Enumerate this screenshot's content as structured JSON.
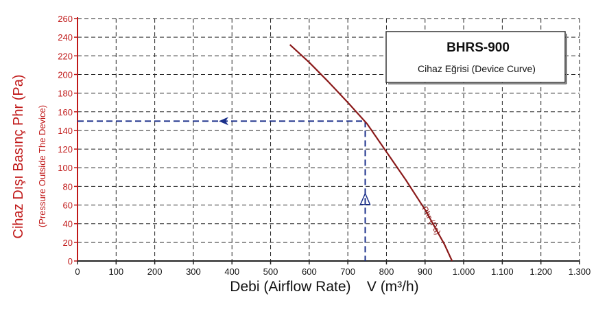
{
  "chart_data": {
    "type": "line",
    "title": "BHRS-900",
    "subtitle": "Cihaz Eğrisi (Device Curve)",
    "xlabel": "Debi (Airflow Rate)    V (m³/h)",
    "ylabel": "Cihaz Dışı Basınç Phr (Pa)",
    "ylabel_secondary": "(Pressure Outside The Device)",
    "xlim": [
      0,
      1300
    ],
    "ylim": [
      0,
      260
    ],
    "x_ticks": [
      0,
      100,
      200,
      300,
      400,
      500,
      600,
      700,
      800,
      900,
      1000,
      1100,
      1200,
      1300
    ],
    "x_tick_labels": [
      "0",
      "100",
      "200",
      "300",
      "400",
      "500",
      "600",
      "700",
      "800",
      "900",
      "1.000",
      "1.100",
      "1.200",
      "1.300"
    ],
    "y_ticks": [
      0,
      20,
      40,
      60,
      80,
      100,
      120,
      140,
      160,
      180,
      200,
      220,
      240,
      260
    ],
    "grid": "dashed",
    "series": [
      {
        "name": "Phr (Pa)",
        "color": "#8b1a1a",
        "x": [
          550,
          600,
          650,
          700,
          750,
          800,
          850,
          900,
          950,
          970
        ],
        "y": [
          232,
          213,
          192,
          170,
          147,
          117,
          87,
          55,
          18,
          0
        ]
      }
    ],
    "operating_point": {
      "x": 745,
      "y": 150,
      "color": "#1a2f8a"
    }
  }
}
